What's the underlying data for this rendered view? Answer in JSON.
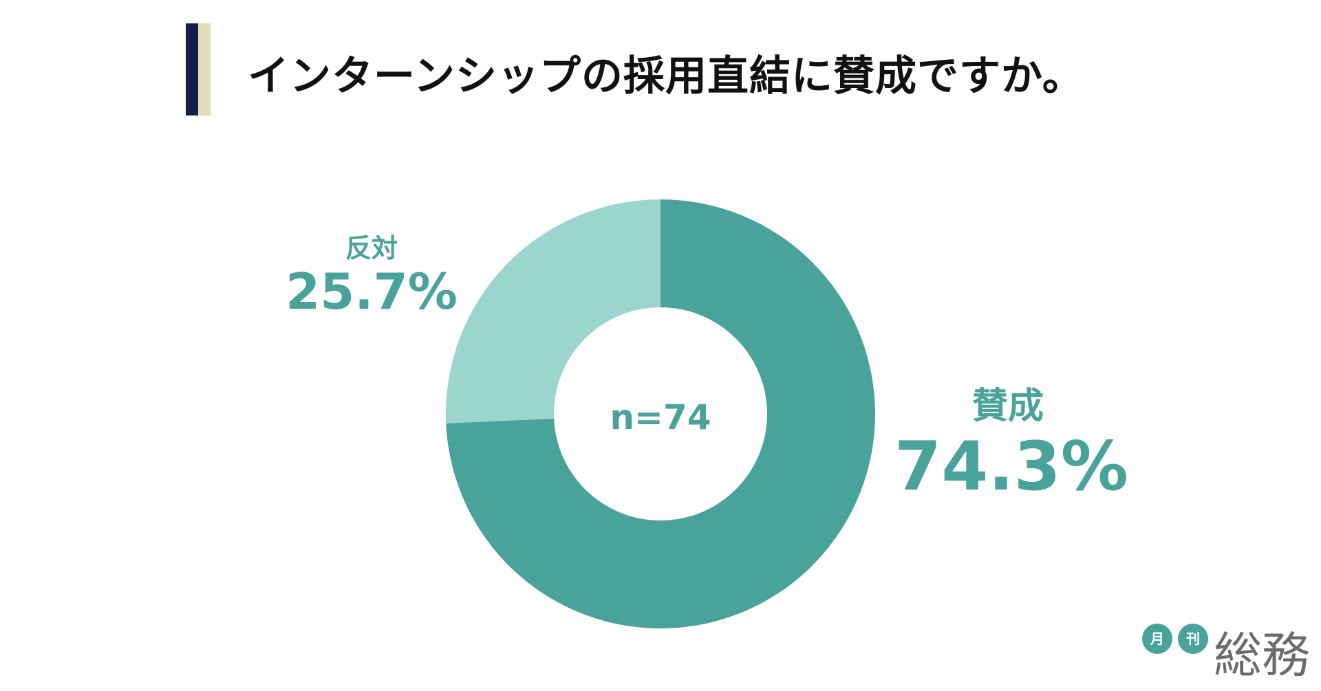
{
  "title": "インターンシップの採用直結に賛成ですか。",
  "center_label": "n=74",
  "colors": {
    "agree": "#4aa39a",
    "oppose": "#9cd5cd",
    "title_bar_dark": "#14204a",
    "title_bar_light": "#e3dcb8"
  },
  "labels": {
    "oppose_name": "反対",
    "oppose_pct": "25.7%",
    "agree_name": "賛成",
    "agree_pct": "74.3%"
  },
  "logo": {
    "badge1": "月",
    "badge2": "刊",
    "name": "総務"
  },
  "chart_data": {
    "type": "pie",
    "title": "インターンシップの採用直結に賛成ですか。",
    "categories": [
      "賛成",
      "反対"
    ],
    "values": [
      74.3,
      25.7
    ],
    "unit": "%",
    "sample": "n=74"
  }
}
